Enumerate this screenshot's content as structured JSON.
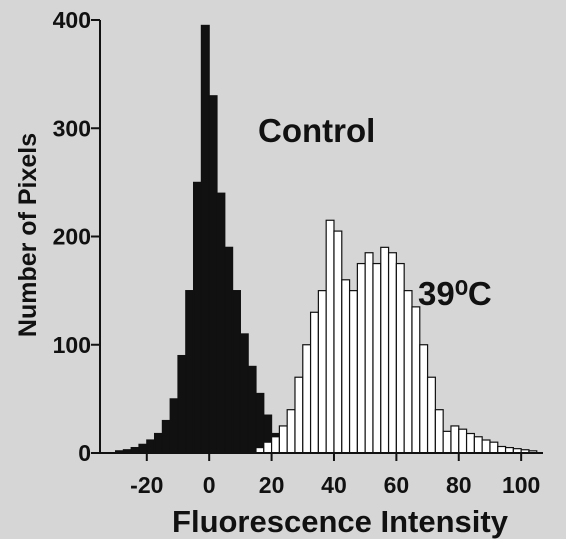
{
  "chart_data": {
    "type": "histogram",
    "x_label": "Fluorescence Intensity",
    "y_label": "Number of Pixels",
    "bins": [
      -30,
      -27.5,
      -25,
      -22.5,
      -20,
      -17.5,
      -15,
      -12.5,
      -10,
      -7.5,
      -5,
      -2.5,
      0,
      2.5,
      5,
      7.5,
      10,
      12.5,
      15,
      17.5,
      20,
      22.5,
      25,
      27.5,
      30,
      32.5,
      35,
      37.5,
      40,
      42.5,
      45,
      47.5,
      50,
      52.5,
      55,
      57.5,
      60,
      62.5,
      65,
      67.5,
      70,
      72.5,
      75,
      77.5,
      80,
      82.5,
      85,
      87.5,
      90,
      92.5,
      95,
      97.5,
      100,
      102.5,
      105
    ],
    "series": [
      {
        "name": "Control",
        "color": "#111111",
        "values": [
          2,
          3,
          5,
          8,
          12,
          18,
          30,
          50,
          90,
          150,
          250,
          395,
          330,
          240,
          190,
          150,
          110,
          80,
          55,
          35,
          18,
          8,
          4,
          2,
          0,
          0,
          0,
          0,
          0,
          0,
          0,
          0,
          0,
          0,
          0,
          0,
          0,
          0,
          0,
          0,
          0,
          0,
          0,
          0,
          0,
          0,
          0,
          0,
          0,
          0,
          0,
          0,
          0,
          0
        ]
      },
      {
        "name": "39⁰C",
        "color": "#ffffff",
        "values": [
          0,
          0,
          0,
          0,
          0,
          0,
          0,
          0,
          0,
          0,
          0,
          0,
          0,
          0,
          0,
          0,
          0,
          0,
          5,
          10,
          15,
          25,
          40,
          70,
          100,
          130,
          150,
          215,
          205,
          160,
          150,
          175,
          185,
          175,
          190,
          185,
          175,
          150,
          135,
          100,
          70,
          40,
          20,
          25,
          22,
          18,
          15,
          12,
          10,
          6,
          5,
          4,
          3,
          2
        ]
      }
    ],
    "xlim": [
      -35,
      107
    ],
    "xticks": [
      -20,
      0,
      20,
      40,
      60,
      80,
      100
    ],
    "ylim": [
      0,
      400
    ],
    "yticks": [
      0,
      100,
      200,
      300,
      400
    ]
  }
}
